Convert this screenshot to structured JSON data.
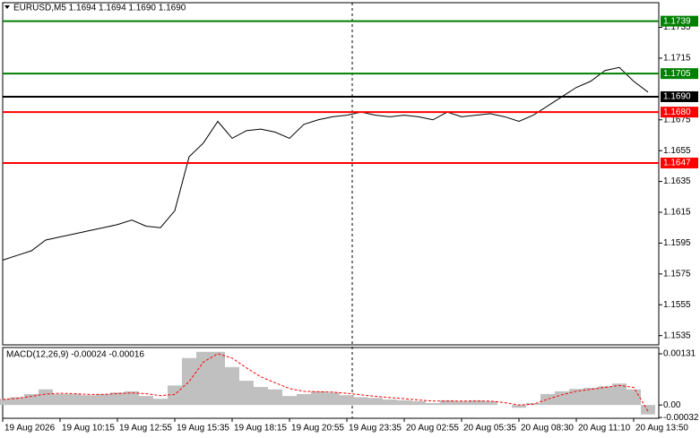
{
  "chart_data": [
    {
      "type": "line",
      "title": "EURUSD,M5  1.1694 1.1694 1.1690 1.1690",
      "categories": [
        "19 Aug 2026",
        null,
        null,
        null,
        "19 Aug 10:15",
        null,
        null,
        null,
        "19 Aug 12:55",
        null,
        null,
        null,
        "19 Aug 15:35",
        null,
        null,
        null,
        "19 Aug 18:15",
        null,
        null,
        null,
        "19 Aug 20:55",
        null,
        null,
        null,
        "19 Aug 23:35",
        null,
        null,
        null,
        "20 Aug 02:55",
        null,
        null,
        null,
        "20 Aug 05:35",
        null,
        null,
        null,
        "20 Aug 08:30",
        null,
        null,
        null,
        "20 Aug 11:10",
        null,
        null,
        null,
        "20 Aug 13:50",
        null
      ],
      "values": [
        1.1584,
        1.1587,
        1.159,
        1.1597,
        1.1599,
        1.1601,
        1.1603,
        1.1605,
        1.1607,
        1.161,
        1.1606,
        1.1605,
        1.1616,
        1.1651,
        1.166,
        1.1674,
        1.1663,
        1.1668,
        1.1669,
        1.1667,
        1.1663,
        1.1672,
        1.1675,
        1.1677,
        1.1678,
        1.168,
        1.1678,
        1.1677,
        1.1678,
        1.1677,
        1.1675,
        1.168,
        1.1677,
        1.1678,
        1.1679,
        1.1677,
        1.1674,
        1.1678,
        1.1684,
        1.169,
        1.1696,
        1.17,
        1.1707,
        1.1709,
        1.17,
        1.1693
      ],
      "color": "#000000",
      "ylim": [
        1.1529,
        1.1751
      ],
      "yticks": [
        1.1535,
        1.1555,
        1.1575,
        1.1595,
        1.1615,
        1.1635,
        1.1655,
        1.1675,
        1.1715,
        1.1735
      ],
      "levels": [
        {
          "value": 1.1739,
          "label": "1.1739",
          "color": "#008000"
        },
        {
          "value": 1.1705,
          "label": "1.1705",
          "color": "#008000"
        },
        {
          "value": 1.169,
          "label": "1.1690",
          "color": "#000000"
        },
        {
          "value": 1.168,
          "label": "1.1680",
          "color": "#ff0000"
        },
        {
          "value": 1.1647,
          "label": "1.1647",
          "color": "#ff0000"
        }
      ]
    },
    {
      "type": "macd",
      "title": "MACD(12,26,9) -0.00024 -0.00016",
      "values": [
        0.00016,
        0.0002,
        0.00028,
        0.0004,
        0.00028,
        0.00028,
        0.00025,
        0.00028,
        0.00032,
        0.00035,
        0.00023,
        0.00016,
        0.0005,
        0.0012,
        0.00136,
        0.00136,
        0.00097,
        0.00062,
        0.00046,
        0.0004,
        0.00023,
        0.00028,
        0.00035,
        0.00032,
        0.00025,
        0.0002,
        0.00018,
        0.00014,
        0.00012,
        0.0001,
        5e-05,
        0.00012,
        0.0001,
        0.00012,
        0.0001,
        0,
        -7e-05,
        5e-05,
        0.00028,
        0.00035,
        0.00041,
        0.00044,
        0.00048,
        0.00055,
        0.0004,
        -0.00024
      ],
      "signal": [
        0.00014,
        0.00017,
        0.00022,
        0.00028,
        0.0003,
        0.00029,
        0.00027,
        0.00027,
        0.00029,
        0.00031,
        0.00029,
        0.00024,
        0.00027,
        0.0006,
        0.0011,
        0.00131,
        0.0012,
        0.00095,
        0.00072,
        0.00057,
        0.00042,
        0.00035,
        0.00034,
        0.00033,
        0.0003,
        0.00026,
        0.00022,
        0.00019,
        0.00016,
        0.00013,
        0.0001,
        0.0001,
        0.0001,
        0.0001,
        0.0001,
        6e-05,
        0,
        2e-05,
        0.00015,
        0.00026,
        0.00035,
        0.0004,
        0.00045,
        0.0005,
        0.00045,
        -0.00016
      ],
      "color": "#c0c0c0",
      "signal_color": "#ff0000",
      "ylim": [
        -0.00034,
        0.00147
      ],
      "yticks": [
        0.00131,
        {
          "value": 0,
          "label": "0.00"
        },
        -0.00032
      ]
    }
  ]
}
